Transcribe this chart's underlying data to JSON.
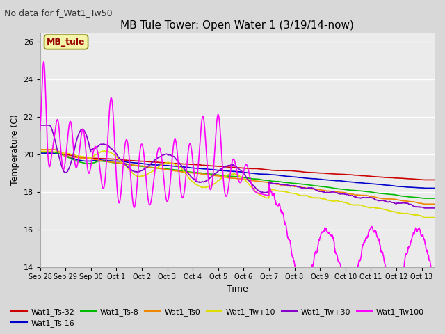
{
  "title": "MB Tule Tower: Open Water 1 (3/19/14-now)",
  "subtitle": "No data for f_Wat1_Tw50",
  "xlabel": "Time",
  "ylabel": "Temperature (C)",
  "ylim": [
    14,
    26.5
  ],
  "xlim": [
    0,
    15.5
  ],
  "yticks": [
    14,
    16,
    18,
    20,
    22,
    24,
    26
  ],
  "xtick_labels": [
    "Sep 28",
    "Sep 29",
    "Sep 30",
    "Oct 1",
    "Oct 2",
    "Oct 3",
    "Oct 4",
    "Oct 5",
    "Oct 6",
    "Oct 7",
    "Oct 8",
    "Oct 9",
    "Oct 10",
    "Oct 11",
    "Oct 12",
    "Oct 13"
  ],
  "legend_label": "MB_tule",
  "series": {
    "Wat1_Ts-32": {
      "color": "#cc0000"
    },
    "Wat1_Ts-16": {
      "color": "#0000cc"
    },
    "Wat1_Ts-8": {
      "color": "#00bb00"
    },
    "Wat1_Ts0": {
      "color": "#ee8800"
    },
    "Wat1_Tw+10": {
      "color": "#dddd00"
    },
    "Wat1_Tw+30": {
      "color": "#8800cc"
    },
    "Wat1_Tw100": {
      "color": "#ff00ff"
    }
  },
  "bg_color": "#d8d8d8",
  "plot_bg_color": "#ebebeb",
  "grid_color": "#ffffff",
  "title_fontsize": 11,
  "subtitle_fontsize": 9,
  "tick_fontsize": 8,
  "legend_fontsize": 8
}
